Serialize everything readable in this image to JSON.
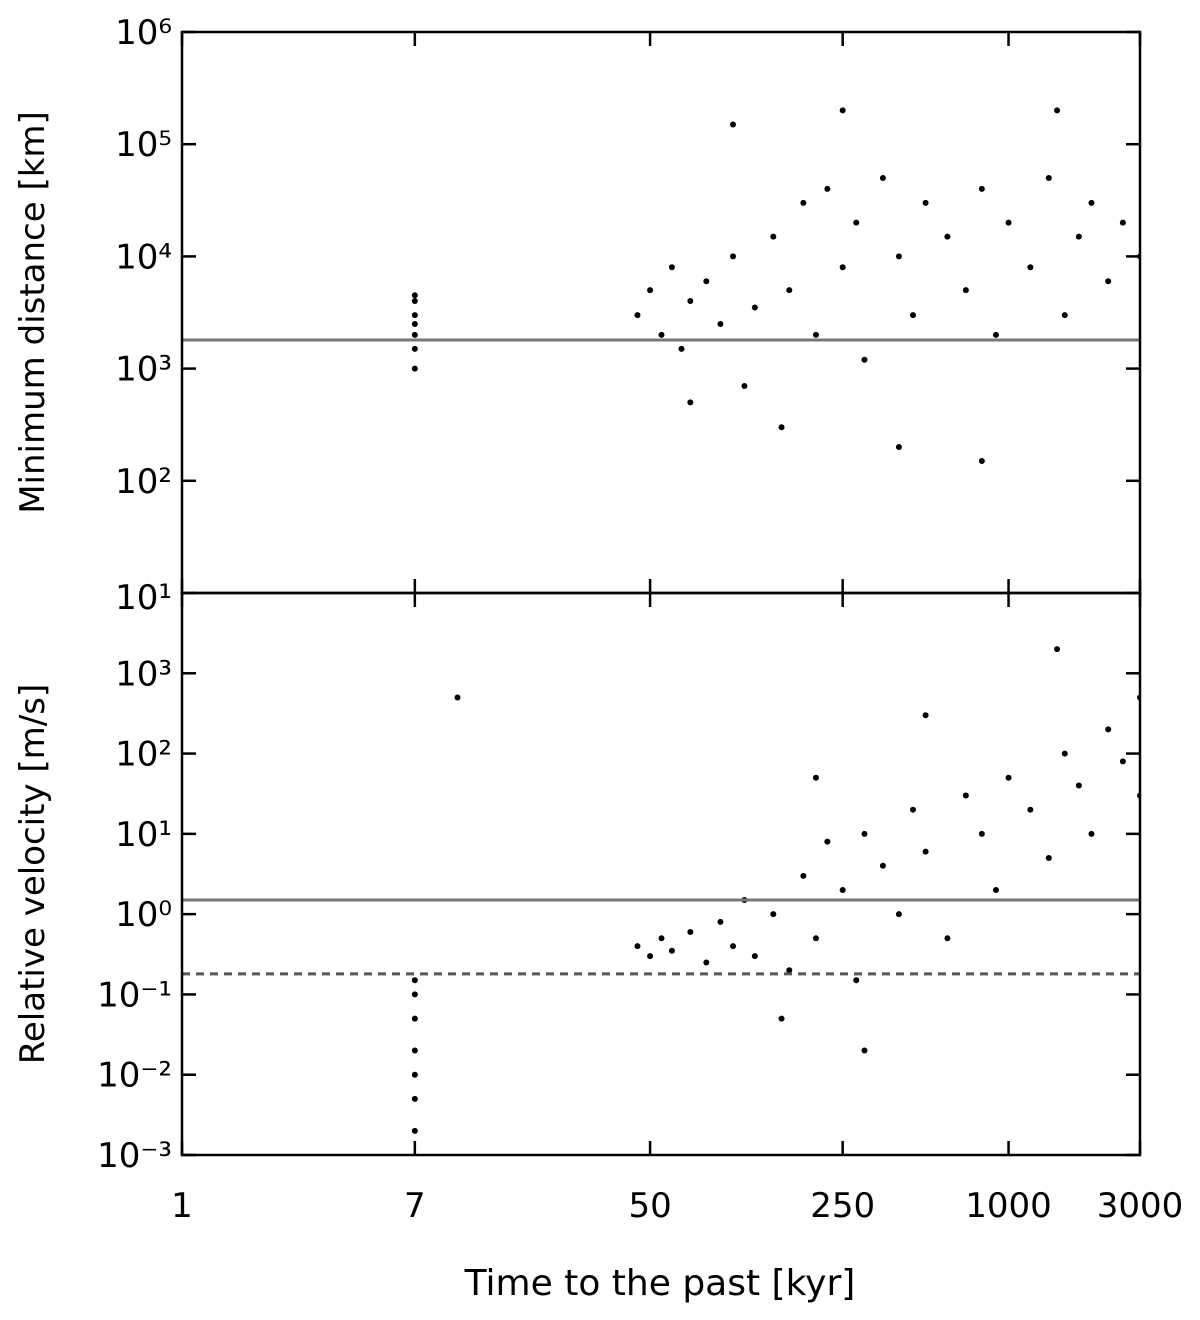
{
  "chart_data": [
    {
      "type": "scatter",
      "ylabel": "Minimum distance [km]",
      "log_x": true,
      "log_y": true,
      "xlim": [
        1,
        3000
      ],
      "ylim": [
        10,
        1000000
      ],
      "xticks": [
        1,
        7,
        50,
        250,
        1000,
        3000
      ],
      "xtick_labels_shown": false,
      "yticks": [
        {
          "value": 10,
          "label": "10¹"
        },
        {
          "value": 100,
          "label": "10²"
        },
        {
          "value": 1000,
          "label": "10³"
        },
        {
          "value": 10000,
          "label": "10⁴"
        },
        {
          "value": 100000,
          "label": "10⁵"
        },
        {
          "value": 1000000,
          "label": "10⁶"
        }
      ],
      "hlines": [
        {
          "value": 1800,
          "color": "#777777",
          "dashed": false
        }
      ],
      "series": [
        {
          "color": "#000000",
          "x": [
            7,
            7,
            7,
            7,
            7,
            7,
            7
          ],
          "values": [
            1000,
            1500,
            2000,
            2500,
            3000,
            4000,
            4500
          ]
        },
        {
          "color": "#000000",
          "x": [
            45,
            50,
            55,
            60,
            65,
            70,
            80,
            90,
            100,
            110,
            120,
            140,
            160,
            180,
            200,
            220,
            250,
            280,
            300,
            350,
            400,
            450,
            500,
            600,
            700,
            800,
            900,
            1000,
            1200,
            1400,
            1600,
            1800,
            2000,
            2300,
            2600,
            3000,
            150,
            400,
            800,
            250,
            1500,
            70,
            100
          ],
          "values": [
            3000,
            5000,
            2000,
            8000,
            1500,
            4000,
            6000,
            2500,
            10000,
            700,
            3500,
            15000,
            5000,
            30000,
            2000,
            40000,
            8000,
            20000,
            1200,
            50000,
            10000,
            3000,
            30000,
            15000,
            5000,
            40000,
            2000,
            20000,
            8000,
            50000,
            3000,
            15000,
            30000,
            6000,
            20000,
            10000,
            300,
            200,
            150,
            200000,
            200000,
            500,
            150000
          ]
        }
      ]
    },
    {
      "type": "scatter",
      "ylabel": "Relative velocity [m/s]",
      "xlabel": "Time to the past [kyr]",
      "log_x": true,
      "log_y": true,
      "xlim": [
        1,
        3000
      ],
      "ylim": [
        0.001,
        10000
      ],
      "xticks": [
        1,
        7,
        50,
        250,
        1000,
        3000
      ],
      "xtick_labels_shown": true,
      "yticks": [
        {
          "value": 0.001,
          "label": "10⁻³"
        },
        {
          "value": 0.01,
          "label": "10⁻²"
        },
        {
          "value": 0.1,
          "label": "10⁻¹"
        },
        {
          "value": 1,
          "label": "10⁰"
        },
        {
          "value": 10,
          "label": "10¹"
        },
        {
          "value": 100,
          "label": "10²"
        },
        {
          "value": 1000,
          "label": "10³"
        }
      ],
      "hlines": [
        {
          "value": 1.5,
          "color": "#777777",
          "dashed": false
        },
        {
          "value": 0.18,
          "color": "#555555",
          "dashed": true
        }
      ],
      "series": [
        {
          "color": "#000000",
          "x": [
            7,
            7,
            7,
            7,
            7,
            7,
            7,
            10
          ],
          "values": [
            0.002,
            0.005,
            0.01,
            0.02,
            0.05,
            0.1,
            0.15,
            500
          ]
        },
        {
          "color": "#000000",
          "x": [
            45,
            50,
            55,
            60,
            70,
            80,
            90,
            100,
            110,
            120,
            140,
            160,
            180,
            200,
            220,
            250,
            280,
            300,
            350,
            400,
            450,
            500,
            600,
            700,
            800,
            900,
            1000,
            1200,
            1400,
            1600,
            1800,
            2000,
            2300,
            2600,
            3000,
            3000,
            200,
            500,
            1500,
            150,
            300
          ],
          "values": [
            0.4,
            0.3,
            0.5,
            0.35,
            0.6,
            0.25,
            0.8,
            0.4,
            1.5,
            0.3,
            1,
            0.2,
            3,
            0.5,
            8,
            2,
            0.15,
            10,
            4,
            1,
            20,
            6,
            0.5,
            30,
            10,
            2,
            50,
            20,
            5,
            100,
            40,
            10,
            200,
            80,
            500,
            30,
            50,
            300,
            2000,
            0.05,
            0.02
          ]
        }
      ]
    }
  ]
}
